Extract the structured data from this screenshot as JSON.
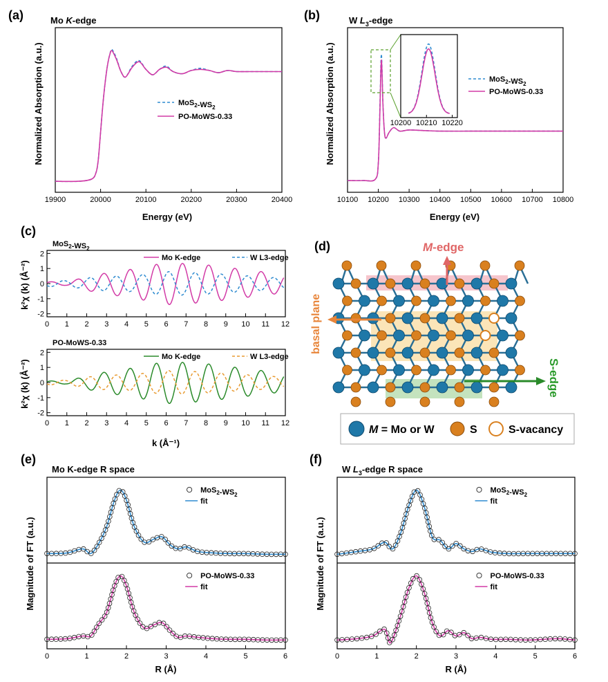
{
  "colors": {
    "mos2": "#2e8bd0",
    "po": "#d23aa6",
    "green": "#2a8a2a",
    "orange": "#e89a30",
    "mo_atom": "#1f78a8",
    "s_atom": "#d9801f",
    "edge_text": "#e06666",
    "basal_text": "#e8853a",
    "sedge_text": "#2a9a2a"
  },
  "panels": {
    "a": {
      "label": "(a)",
      "title_pre": "Mo ",
      "title_em": "K",
      "title_post": "-edge",
      "xlabel": "Energy (eV)",
      "ylabel": "Normalized Absorption (a.u.)"
    },
    "b": {
      "label": "(b)",
      "title_pre": "W ",
      "title_em": "L",
      "title_sub": "3",
      "title_post": "-edge",
      "xlabel": "Energy (eV)",
      "ylabel": "Normalized Absorption (a.u.)"
    },
    "c": {
      "label": "(c)",
      "top_title": "MoS2-WS2",
      "bottom_title": "PO-MoWS-0.33",
      "xlabel": "k (Å⁻¹)",
      "ylabel": "k²χ (k) (Å⁻²)"
    },
    "d": {
      "label": "(d)",
      "m_edge": "M-edge",
      "basal": "basal plane",
      "s_edge": "S-edge",
      "legend_m": "M = Mo or W",
      "legend_s": "S",
      "legend_v": "S-vacancy"
    },
    "e": {
      "label": "(e)",
      "title": "Mo K-edge R space",
      "xlabel": "R (Å)",
      "ylabel": "Magnitude of FT (a.u.)"
    },
    "f": {
      "label": "(f)",
      "title_pre": "W ",
      "title_em": "L",
      "title_sub": "3",
      "title_post": "-edge R space",
      "xlabel": "R (Å)",
      "ylabel": "Magnitude of FT (a.u.)"
    }
  },
  "legends": {
    "mos2_ws2": "MoS2-WS2",
    "po_mows": "PO-MoWS-0.33",
    "mo_k": "Mo K-edge",
    "w_l3": "W L3-edge",
    "fit": "fit"
  },
  "chart_data": [
    {
      "panel": "a",
      "type": "line",
      "title": "Mo K-edge",
      "xlabel": "Energy (eV)",
      "ylabel": "Normalized Absorption (a.u.)",
      "xlim": [
        19900,
        20400
      ],
      "xticks": [
        19900,
        20000,
        20100,
        20200,
        20300,
        20400
      ],
      "series": [
        {
          "name": "MoS2-WS2",
          "style": "dashed",
          "x": [
            19900,
            19950,
            19980,
            19990,
            19995,
            20000,
            20005,
            20010,
            20015,
            20020,
            20025,
            20035,
            20045,
            20055,
            20070,
            20085,
            20100,
            20115,
            20130,
            20145,
            20160,
            20180,
            20200,
            20220,
            20240,
            20260,
            20280,
            20300,
            20330,
            20360,
            20400
          ],
          "y": [
            0.0,
            0.0,
            0.02,
            0.08,
            0.2,
            0.45,
            0.7,
            0.9,
            1.05,
            1.15,
            1.2,
            1.12,
            1.0,
            0.95,
            1.05,
            1.1,
            1.02,
            0.97,
            1.02,
            1.05,
            1.0,
            0.98,
            1.01,
            1.03,
            1.01,
            0.99,
            1.01,
            1.0,
            1.0,
            1.0,
            1.0
          ]
        },
        {
          "name": "PO-MoWS-0.33",
          "style": "solid",
          "x": [
            19900,
            19950,
            19980,
            19990,
            19995,
            20000,
            20005,
            20010,
            20015,
            20020,
            20025,
            20035,
            20045,
            20055,
            20070,
            20085,
            20100,
            20115,
            20130,
            20145,
            20160,
            20180,
            20200,
            20220,
            20240,
            20260,
            20280,
            20300,
            20330,
            20360,
            20400
          ],
          "y": [
            0.0,
            0.0,
            0.02,
            0.08,
            0.2,
            0.45,
            0.7,
            0.9,
            1.05,
            1.15,
            1.19,
            1.11,
            1.0,
            0.95,
            1.04,
            1.09,
            1.02,
            0.97,
            1.02,
            1.04,
            1.0,
            0.98,
            1.01,
            1.02,
            1.01,
            0.99,
            1.01,
            1.0,
            1.0,
            1.0,
            1.0
          ]
        }
      ]
    },
    {
      "panel": "b",
      "type": "line",
      "title": "W L3-edge",
      "xlabel": "Energy (eV)",
      "ylabel": "Normalized Absorption (a.u.)",
      "xlim": [
        10100,
        10800
      ],
      "xticks": [
        10100,
        10200,
        10300,
        10400,
        10500,
        10600,
        10700,
        10800
      ],
      "inset": {
        "xlim": [
          10200,
          10222
        ],
        "xticks": [
          10200,
          10210,
          10220
        ]
      },
      "series": [
        {
          "name": "MoS2-WS2",
          "style": "dashed",
          "x": [
            10100,
            10150,
            10190,
            10200,
            10205,
            10208,
            10210,
            10212,
            10215,
            10220,
            10225,
            10235,
            10250,
            10270,
            10300,
            10350,
            10400,
            10500,
            10600,
            10700,
            10800
          ],
          "y": [
            0.0,
            0.0,
            0.02,
            0.3,
            1.2,
            1.9,
            2.15,
            1.9,
            1.3,
            0.82,
            0.72,
            0.82,
            0.9,
            0.84,
            0.86,
            0.85,
            0.84,
            0.84,
            0.84,
            0.84,
            0.84
          ]
        },
        {
          "name": "PO-MoWS-0.33",
          "style": "solid",
          "x": [
            10100,
            10150,
            10190,
            10200,
            10205,
            10208,
            10210,
            10212,
            10215,
            10220,
            10225,
            10235,
            10250,
            10270,
            10300,
            10350,
            10400,
            10500,
            10600,
            10700,
            10800
          ],
          "y": [
            0.0,
            0.0,
            0.02,
            0.3,
            1.15,
            1.82,
            2.05,
            1.85,
            1.28,
            0.82,
            0.72,
            0.82,
            0.9,
            0.84,
            0.86,
            0.85,
            0.84,
            0.84,
            0.84,
            0.84,
            0.84
          ]
        }
      ]
    },
    {
      "panel": "c-top",
      "type": "line",
      "title": "MoS2-WS2",
      "xlim": [
        0,
        12
      ],
      "ylim": [
        -2.2,
        2.2
      ],
      "xticks": [
        0,
        1,
        2,
        3,
        4,
        5,
        6,
        7,
        8,
        9,
        10,
        11,
        12
      ],
      "yticks": [
        -2,
        -1,
        0,
        1,
        2
      ],
      "series": [
        {
          "name": "Mo K-edge",
          "style": "solid",
          "model": "oscillation",
          "amp": [
            0.12,
            0.6,
            1.0,
            1.4,
            1.25,
            0.6
          ],
          "amp_k": [
            1,
            2.5,
            4.5,
            6,
            8,
            12
          ],
          "period": 1.32,
          "phase": 0.5
        },
        {
          "name": "W L3-edge",
          "style": "dashed",
          "model": "oscillation",
          "amp": [
            0.2,
            0.45,
            0.55,
            0.8,
            0.7,
            0.35
          ],
          "amp_k": [
            1,
            2.5,
            4.5,
            6,
            8,
            12
          ],
          "period": 1.32,
          "phase": 3.8
        }
      ]
    },
    {
      "panel": "c-bottom",
      "type": "line",
      "title": "PO-MoWS-0.33",
      "xlim": [
        0,
        12
      ],
      "ylim": [
        -2.2,
        2.2
      ],
      "xticks": [
        0,
        1,
        2,
        3,
        4,
        5,
        6,
        7,
        8,
        9,
        10,
        11,
        12
      ],
      "yticks": [
        -2,
        -1,
        0,
        1,
        2
      ],
      "series": [
        {
          "name": "Mo K-edge",
          "style": "solid",
          "model": "oscillation",
          "amp": [
            0.1,
            0.6,
            1.0,
            1.4,
            1.25,
            0.6
          ],
          "amp_k": [
            1,
            2.5,
            4.5,
            6,
            8,
            12
          ],
          "period": 1.32,
          "phase": 0.5
        },
        {
          "name": "W L3-edge",
          "style": "dashed",
          "model": "oscillation",
          "amp": [
            0.15,
            0.45,
            0.55,
            0.8,
            0.7,
            0.35
          ],
          "amp_k": [
            1,
            2.5,
            4.5,
            6,
            8,
            12
          ],
          "period": 1.32,
          "phase": 3.8
        }
      ]
    },
    {
      "panel": "e-top",
      "type": "line+scatter",
      "xlim": [
        0,
        6
      ],
      "xticks": [
        0,
        1,
        2,
        3,
        4,
        5,
        6
      ],
      "series": [
        {
          "name": "MoS2-WS2",
          "marker": "circle"
        },
        {
          "name": "fit",
          "style": "solid"
        }
      ],
      "x": [
        0,
        0.5,
        0.9,
        1.1,
        1.3,
        1.5,
        1.7,
        1.85,
        2.0,
        2.2,
        2.45,
        2.7,
        2.9,
        3.1,
        3.3,
        3.5,
        3.8,
        4.2,
        4.6,
        5.0,
        5.5,
        6.0
      ],
      "y": [
        0.05,
        0.06,
        0.12,
        0.05,
        0.2,
        0.45,
        0.85,
        1.0,
        0.85,
        0.45,
        0.22,
        0.27,
        0.3,
        0.18,
        0.12,
        0.15,
        0.08,
        0.06,
        0.05,
        0.05,
        0.04,
        0.04
      ]
    },
    {
      "panel": "e-bottom",
      "type": "line+scatter",
      "xlim": [
        0,
        6
      ],
      "xticks": [
        0,
        1,
        2,
        3,
        4,
        5,
        6
      ],
      "series": [
        {
          "name": "PO-MoWS-0.33",
          "marker": "circle"
        },
        {
          "name": "fit",
          "style": "solid"
        }
      ],
      "x": [
        0,
        0.5,
        0.9,
        1.1,
        1.3,
        1.5,
        1.7,
        1.85,
        2.0,
        2.2,
        2.45,
        2.7,
        2.9,
        3.1,
        3.3,
        3.5,
        3.8,
        4.2,
        4.6,
        5.0,
        5.5,
        6.0
      ],
      "y": [
        0.05,
        0.06,
        0.1,
        0.1,
        0.28,
        0.45,
        0.85,
        1.0,
        0.85,
        0.45,
        0.22,
        0.27,
        0.3,
        0.18,
        0.08,
        0.1,
        0.08,
        0.06,
        0.05,
        0.05,
        0.04,
        0.04
      ]
    },
    {
      "panel": "f-top",
      "type": "line+scatter",
      "xlim": [
        0,
        6
      ],
      "xticks": [
        0,
        1,
        2,
        3,
        4,
        5,
        6
      ],
      "series": [
        {
          "name": "MoS2-WS2",
          "marker": "circle"
        },
        {
          "name": "fit",
          "style": "solid"
        }
      ],
      "x": [
        0,
        0.5,
        0.9,
        1.2,
        1.4,
        1.6,
        1.8,
        2.0,
        2.2,
        2.4,
        2.6,
        2.8,
        3.0,
        3.2,
        3.4,
        3.6,
        3.9,
        4.3,
        4.8,
        5.2,
        5.6,
        6.0
      ],
      "y": [
        0.04,
        0.08,
        0.12,
        0.22,
        0.12,
        0.35,
        0.75,
        1.0,
        0.75,
        0.3,
        0.25,
        0.12,
        0.2,
        0.12,
        0.08,
        0.12,
        0.07,
        0.05,
        0.05,
        0.05,
        0.05,
        0.05
      ]
    },
    {
      "panel": "f-bottom",
      "type": "line+scatter",
      "xlim": [
        0,
        6
      ],
      "xticks": [
        0,
        1,
        2,
        3,
        4,
        5,
        6
      ],
      "series": [
        {
          "name": "PO-MoWS-0.33",
          "marker": "circle"
        },
        {
          "name": "fit",
          "style": "solid"
        }
      ],
      "x": [
        0,
        0.5,
        0.9,
        1.2,
        1.35,
        1.6,
        1.8,
        2.0,
        2.2,
        2.4,
        2.6,
        2.8,
        3.0,
        3.2,
        3.4,
        3.6,
        3.9,
        4.3,
        4.8,
        5.2,
        5.6,
        6.0
      ],
      "y": [
        0.04,
        0.06,
        0.1,
        0.2,
        0.0,
        0.4,
        0.8,
        1.0,
        0.75,
        0.3,
        0.1,
        0.18,
        0.1,
        0.15,
        0.06,
        0.08,
        0.05,
        0.05,
        0.04,
        0.05,
        0.06,
        0.04
      ]
    }
  ]
}
